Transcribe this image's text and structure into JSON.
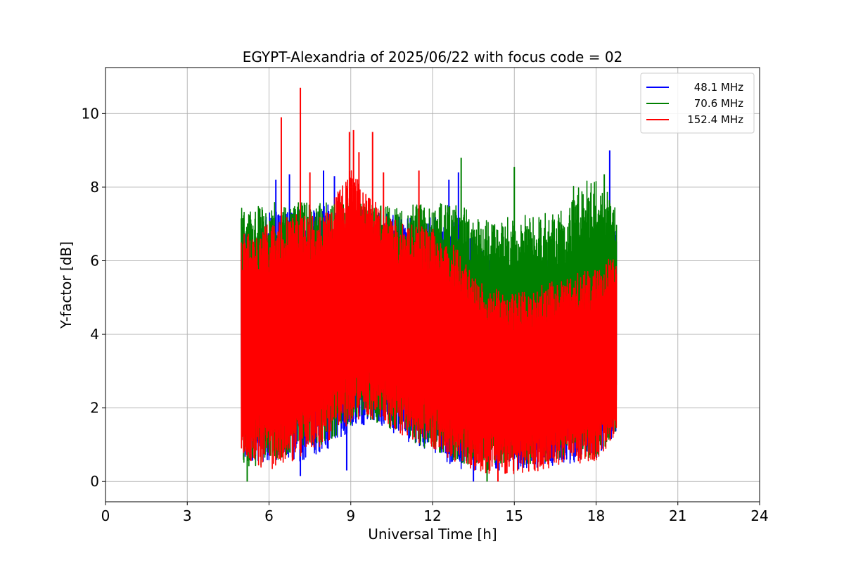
{
  "chart_data": {
    "type": "line",
    "title": "EGYPT-Alexandria of 2025/06/22 with focus code = 02",
    "xlabel": "Universal Time [h]",
    "ylabel": "Y-factor [dB]",
    "xlim": [
      0,
      24
    ],
    "ylim": [
      -0.55,
      11.25
    ],
    "xticks": [
      0,
      3,
      6,
      9,
      12,
      15,
      18,
      21,
      24
    ],
    "yticks": [
      0,
      2,
      4,
      6,
      8,
      10
    ],
    "grid": true,
    "legend_position": "top-right",
    "series": [
      {
        "name": "48.1 MHz",
        "color": "#0000ff",
        "x_range": [
          4.98,
          18.75
        ],
        "profile": [
          {
            "x": 5.0,
            "lo": 0.6,
            "hi": 6.9
          },
          {
            "x": 6.0,
            "lo": 0.5,
            "hi": 7.3
          },
          {
            "x": 7.0,
            "lo": 0.5,
            "hi": 7.4
          },
          {
            "x": 8.0,
            "lo": 0.8,
            "hi": 7.5
          },
          {
            "x": 9.0,
            "lo": 1.4,
            "hi": 7.6
          },
          {
            "x": 10.0,
            "lo": 1.6,
            "hi": 7.3
          },
          {
            "x": 11.0,
            "lo": 1.1,
            "hi": 7.2
          },
          {
            "x": 12.0,
            "lo": 0.8,
            "hi": 7.2
          },
          {
            "x": 13.0,
            "lo": 0.3,
            "hi": 7.0
          },
          {
            "x": 14.0,
            "lo": 0.2,
            "hi": 6.3
          },
          {
            "x": 15.0,
            "lo": 0.3,
            "hi": 6.1
          },
          {
            "x": 16.0,
            "lo": 0.4,
            "hi": 6.1
          },
          {
            "x": 17.0,
            "lo": 0.5,
            "hi": 6.3
          },
          {
            "x": 18.0,
            "lo": 0.5,
            "hi": 6.8
          },
          {
            "x": 18.75,
            "lo": 1.3,
            "hi": 7.0
          }
        ],
        "spikes": [
          {
            "x": 6.25,
            "y": 8.2
          },
          {
            "x": 6.75,
            "y": 8.35
          },
          {
            "x": 7.15,
            "y": 0.15
          },
          {
            "x": 8.0,
            "y": 8.45
          },
          {
            "x": 8.4,
            "y": 8.3
          },
          {
            "x": 8.85,
            "y": 0.3
          },
          {
            "x": 12.6,
            "y": 8.2
          },
          {
            "x": 12.95,
            "y": 8.4
          },
          {
            "x": 13.5,
            "y": 0.0
          },
          {
            "x": 15.45,
            "y": 1.9
          },
          {
            "x": 18.5,
            "y": 9.0
          }
        ]
      },
      {
        "name": "70.6 MHz",
        "color": "#008000",
        "x_range": [
          4.98,
          18.75
        ],
        "profile": [
          {
            "x": 5.0,
            "lo": 0.3,
            "hi": 7.5
          },
          {
            "x": 6.0,
            "lo": 0.5,
            "hi": 7.6
          },
          {
            "x": 7.0,
            "lo": 0.8,
            "hi": 7.6
          },
          {
            "x": 8.0,
            "lo": 1.0,
            "hi": 7.6
          },
          {
            "x": 9.0,
            "lo": 1.5,
            "hi": 7.6
          },
          {
            "x": 10.0,
            "lo": 1.6,
            "hi": 7.5
          },
          {
            "x": 11.0,
            "lo": 1.2,
            "hi": 7.5
          },
          {
            "x": 12.0,
            "lo": 0.8,
            "hi": 7.6
          },
          {
            "x": 13.0,
            "lo": 0.4,
            "hi": 7.5
          },
          {
            "x": 14.0,
            "lo": 0.3,
            "hi": 7.1
          },
          {
            "x": 15.0,
            "lo": 0.4,
            "hi": 7.2
          },
          {
            "x": 16.0,
            "lo": 0.5,
            "hi": 7.3
          },
          {
            "x": 17.0,
            "lo": 0.6,
            "hi": 7.4
          },
          {
            "x": 17.2,
            "lo": 0.6,
            "hi": 8.2
          },
          {
            "x": 18.0,
            "lo": 0.6,
            "hi": 8.2
          },
          {
            "x": 18.75,
            "lo": 1.3,
            "hi": 7.6
          }
        ],
        "spikes": [
          {
            "x": 5.2,
            "y": 0.0
          },
          {
            "x": 13.05,
            "y": 8.8
          },
          {
            "x": 14.0,
            "y": 0.0
          },
          {
            "x": 15.0,
            "y": 8.55
          },
          {
            "x": 18.3,
            "y": 8.35
          }
        ]
      },
      {
        "name": "152.4 MHz",
        "color": "#ff0000",
        "x_range": [
          4.98,
          18.75
        ],
        "profile": [
          {
            "x": 5.0,
            "lo": 0.6,
            "hi": 6.7
          },
          {
            "x": 6.0,
            "lo": 0.3,
            "hi": 7.0
          },
          {
            "x": 7.0,
            "lo": 0.6,
            "hi": 7.3
          },
          {
            "x": 8.0,
            "lo": 1.0,
            "hi": 7.2
          },
          {
            "x": 9.0,
            "lo": 1.6,
            "hi": 8.5
          },
          {
            "x": 10.0,
            "lo": 1.7,
            "hi": 7.5
          },
          {
            "x": 11.0,
            "lo": 1.2,
            "hi": 7.0
          },
          {
            "x": 12.0,
            "lo": 0.9,
            "hi": 6.9
          },
          {
            "x": 13.0,
            "lo": 0.4,
            "hi": 6.3
          },
          {
            "x": 14.0,
            "lo": 0.2,
            "hi": 5.3
          },
          {
            "x": 15.0,
            "lo": 0.2,
            "hi": 5.1
          },
          {
            "x": 16.0,
            "lo": 0.3,
            "hi": 5.4
          },
          {
            "x": 17.0,
            "lo": 0.5,
            "hi": 5.6
          },
          {
            "x": 18.0,
            "lo": 0.5,
            "hi": 5.8
          },
          {
            "x": 18.75,
            "lo": 1.3,
            "hi": 6.2
          }
        ],
        "spikes": [
          {
            "x": 6.45,
            "y": 9.9
          },
          {
            "x": 7.15,
            "y": 10.7
          },
          {
            "x": 7.5,
            "y": 8.4
          },
          {
            "x": 8.95,
            "y": 9.5
          },
          {
            "x": 9.1,
            "y": 9.55
          },
          {
            "x": 9.3,
            "y": 8.95
          },
          {
            "x": 9.8,
            "y": 9.5
          },
          {
            "x": 10.2,
            "y": 8.4
          },
          {
            "x": 11.5,
            "y": 8.45
          },
          {
            "x": 14.4,
            "y": 0.0
          }
        ]
      }
    ]
  }
}
